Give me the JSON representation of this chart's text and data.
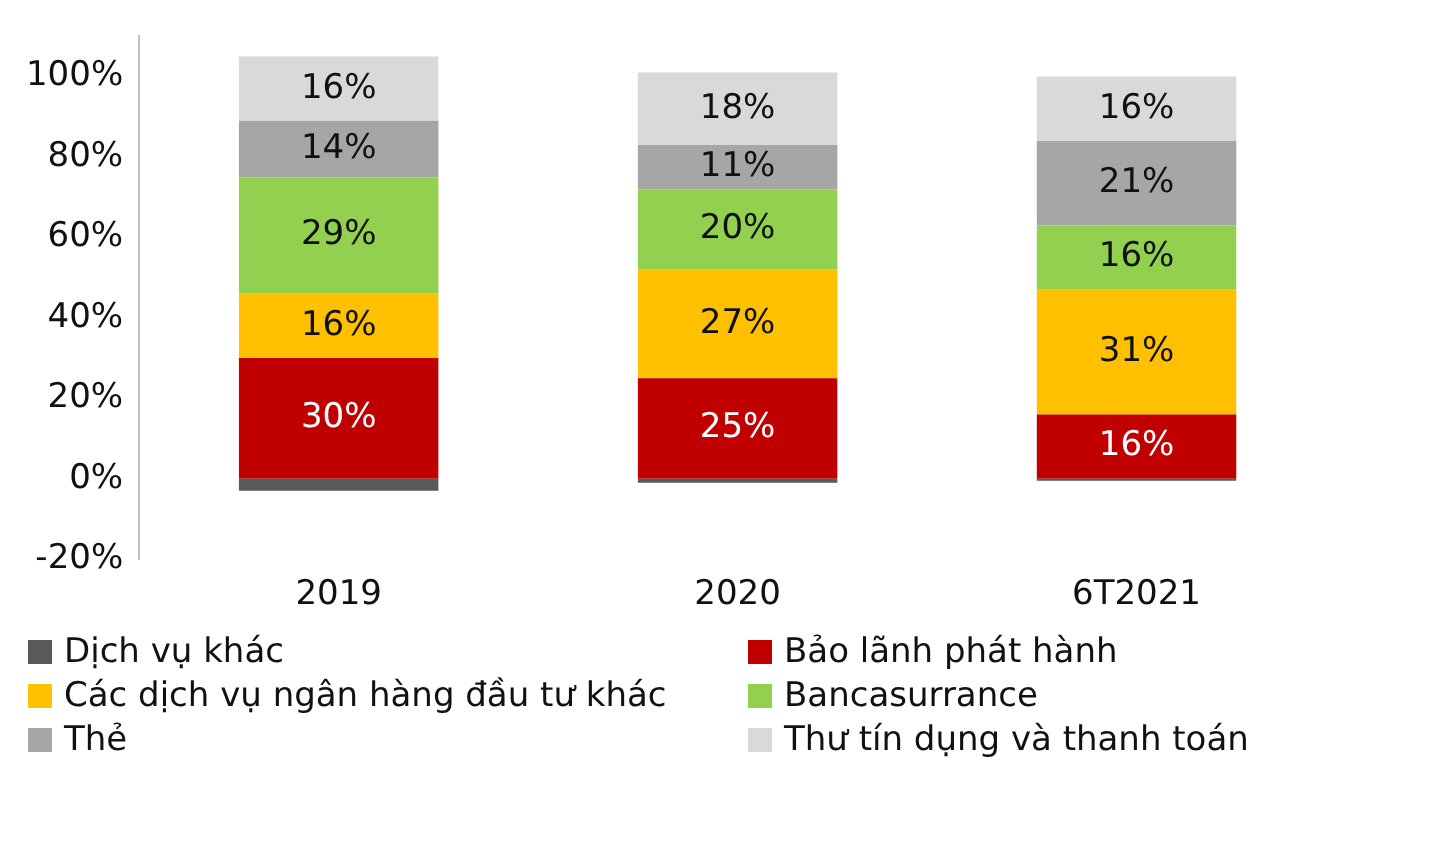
{
  "chart_data": {
    "type": "bar",
    "stacked": true,
    "categories": [
      "2019",
      "2020",
      "6T2021"
    ],
    "ylim": [
      -20,
      110
    ],
    "yticks": [
      {
        "value": -20,
        "label": "-20%"
      },
      {
        "value": 0,
        "label": "0%"
      },
      {
        "value": 20,
        "label": "20%"
      },
      {
        "value": 40,
        "label": "40%"
      },
      {
        "value": 60,
        "label": "60%"
      },
      {
        "value": 80,
        "label": "80%"
      },
      {
        "value": 100,
        "label": "100%"
      }
    ],
    "grid": false,
    "legend": "bottom",
    "series": [
      {
        "name": "Dịch vụ khác",
        "color": "#595959",
        "values": [
          -3,
          -1,
          -0.5
        ]
      },
      {
        "name": "Bảo lãnh phát hành",
        "color": "#c00000",
        "values": [
          30,
          25,
          16
        ],
        "value_labels": [
          "30%",
          "25%",
          "16%"
        ]
      },
      {
        "name": "Các dịch vụ ngân hàng đầu tư khác",
        "color": "#ffc000",
        "values": [
          16,
          27,
          31
        ],
        "value_labels": [
          "16%",
          "27%",
          "31%"
        ]
      },
      {
        "name": "Bancasurrance",
        "color": "#92d050",
        "values": [
          29,
          20,
          16
        ],
        "value_labels": [
          "29%",
          "20%",
          "16%"
        ]
      },
      {
        "name": "Thẻ",
        "color": "#a6a6a6",
        "values": [
          14,
          11,
          21
        ],
        "value_labels": [
          "14%",
          "11%",
          "21%"
        ]
      },
      {
        "name": "Thư tín dụng và thanh toán",
        "color": "#d9d9d9",
        "values": [
          16,
          18,
          16
        ],
        "value_labels": [
          "16%",
          "18%",
          "16%"
        ]
      }
    ]
  }
}
